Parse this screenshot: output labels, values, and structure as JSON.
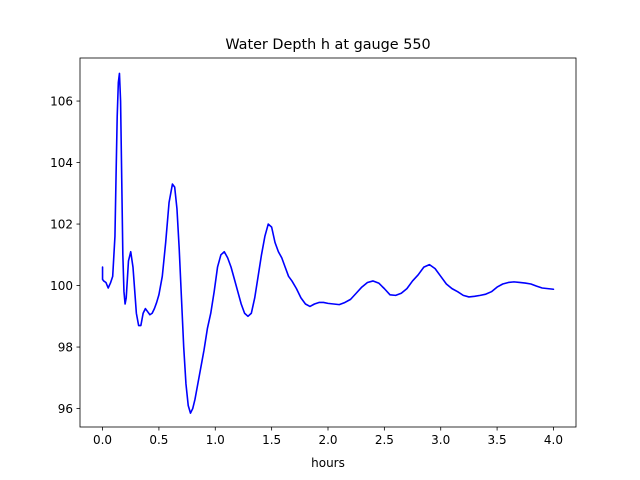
{
  "chart_data": {
    "type": "line",
    "title": "Water Depth h at gauge 550",
    "xlabel": "hours",
    "ylabel": "",
    "xlim": [
      -0.2,
      4.2
    ],
    "ylim": [
      95.4,
      107.4
    ],
    "xticks": [
      0.0,
      0.5,
      1.0,
      1.5,
      2.0,
      2.5,
      3.0,
      3.5,
      4.0
    ],
    "xtick_labels": [
      "0.0",
      "0.5",
      "1.0",
      "1.5",
      "2.0",
      "2.5",
      "3.0",
      "3.5",
      "4.0"
    ],
    "yticks": [
      96,
      98,
      100,
      102,
      104,
      106
    ],
    "ytick_labels": [
      "96",
      "98",
      "100",
      "102",
      "104",
      "106"
    ],
    "grid": false,
    "line_color": "#0000ff",
    "series": [
      {
        "name": "",
        "x": [
          0.0,
          0.0,
          0.01,
          0.03,
          0.05,
          0.07,
          0.09,
          0.11,
          0.12,
          0.13,
          0.14,
          0.15,
          0.16,
          0.17,
          0.18,
          0.19,
          0.2,
          0.21,
          0.22,
          0.23,
          0.25,
          0.27,
          0.29,
          0.3,
          0.32,
          0.34,
          0.36,
          0.38,
          0.4,
          0.42,
          0.44,
          0.46,
          0.48,
          0.5,
          0.53,
          0.56,
          0.59,
          0.62,
          0.64,
          0.66,
          0.68,
          0.7,
          0.72,
          0.74,
          0.76,
          0.78,
          0.8,
          0.82,
          0.84,
          0.86,
          0.88,
          0.9,
          0.93,
          0.96,
          0.99,
          1.02,
          1.05,
          1.08,
          1.11,
          1.14,
          1.17,
          1.2,
          1.23,
          1.26,
          1.29,
          1.32,
          1.35,
          1.38,
          1.41,
          1.44,
          1.47,
          1.5,
          1.53,
          1.56,
          1.59,
          1.62,
          1.65,
          1.68,
          1.72,
          1.76,
          1.8,
          1.84,
          1.88,
          1.92,
          1.96,
          2.0,
          2.05,
          2.1,
          2.15,
          2.2,
          2.25,
          2.3,
          2.35,
          2.4,
          2.45,
          2.5,
          2.55,
          2.6,
          2.65,
          2.7,
          2.75,
          2.8,
          2.85,
          2.9,
          2.95,
          3.0,
          3.05,
          3.1,
          3.15,
          3.2,
          3.25,
          3.3,
          3.35,
          3.4,
          3.45,
          3.5,
          3.55,
          3.6,
          3.65,
          3.7,
          3.75,
          3.8,
          3.85,
          3.9,
          3.95,
          4.0
        ],
        "y": [
          100.6,
          100.2,
          100.15,
          100.1,
          99.92,
          100.08,
          100.3,
          101.6,
          103.6,
          105.5,
          106.6,
          106.9,
          106.0,
          103.5,
          101.0,
          99.8,
          99.4,
          99.6,
          100.2,
          100.8,
          101.1,
          100.6,
          99.6,
          99.1,
          98.7,
          98.7,
          99.1,
          99.25,
          99.15,
          99.05,
          99.1,
          99.25,
          99.45,
          99.7,
          100.3,
          101.4,
          102.7,
          103.3,
          103.2,
          102.5,
          101.2,
          99.6,
          98.0,
          96.8,
          96.1,
          95.85,
          96.0,
          96.3,
          96.7,
          97.1,
          97.5,
          97.9,
          98.6,
          99.1,
          99.8,
          100.6,
          101.0,
          101.1,
          100.9,
          100.6,
          100.2,
          99.8,
          99.4,
          99.1,
          99.0,
          99.1,
          99.6,
          100.3,
          101.0,
          101.6,
          102.0,
          101.9,
          101.4,
          101.1,
          100.9,
          100.6,
          100.3,
          100.15,
          99.9,
          99.6,
          99.4,
          99.32,
          99.4,
          99.45,
          99.45,
          99.42,
          99.4,
          99.38,
          99.45,
          99.55,
          99.75,
          99.95,
          100.1,
          100.15,
          100.08,
          99.9,
          99.7,
          99.68,
          99.75,
          99.9,
          100.15,
          100.35,
          100.6,
          100.68,
          100.55,
          100.3,
          100.05,
          99.9,
          99.8,
          99.68,
          99.63,
          99.65,
          99.68,
          99.72,
          99.8,
          99.95,
          100.05,
          100.1,
          100.12,
          100.1,
          100.08,
          100.05,
          99.98,
          99.92,
          99.9,
          99.88
        ]
      }
    ]
  }
}
